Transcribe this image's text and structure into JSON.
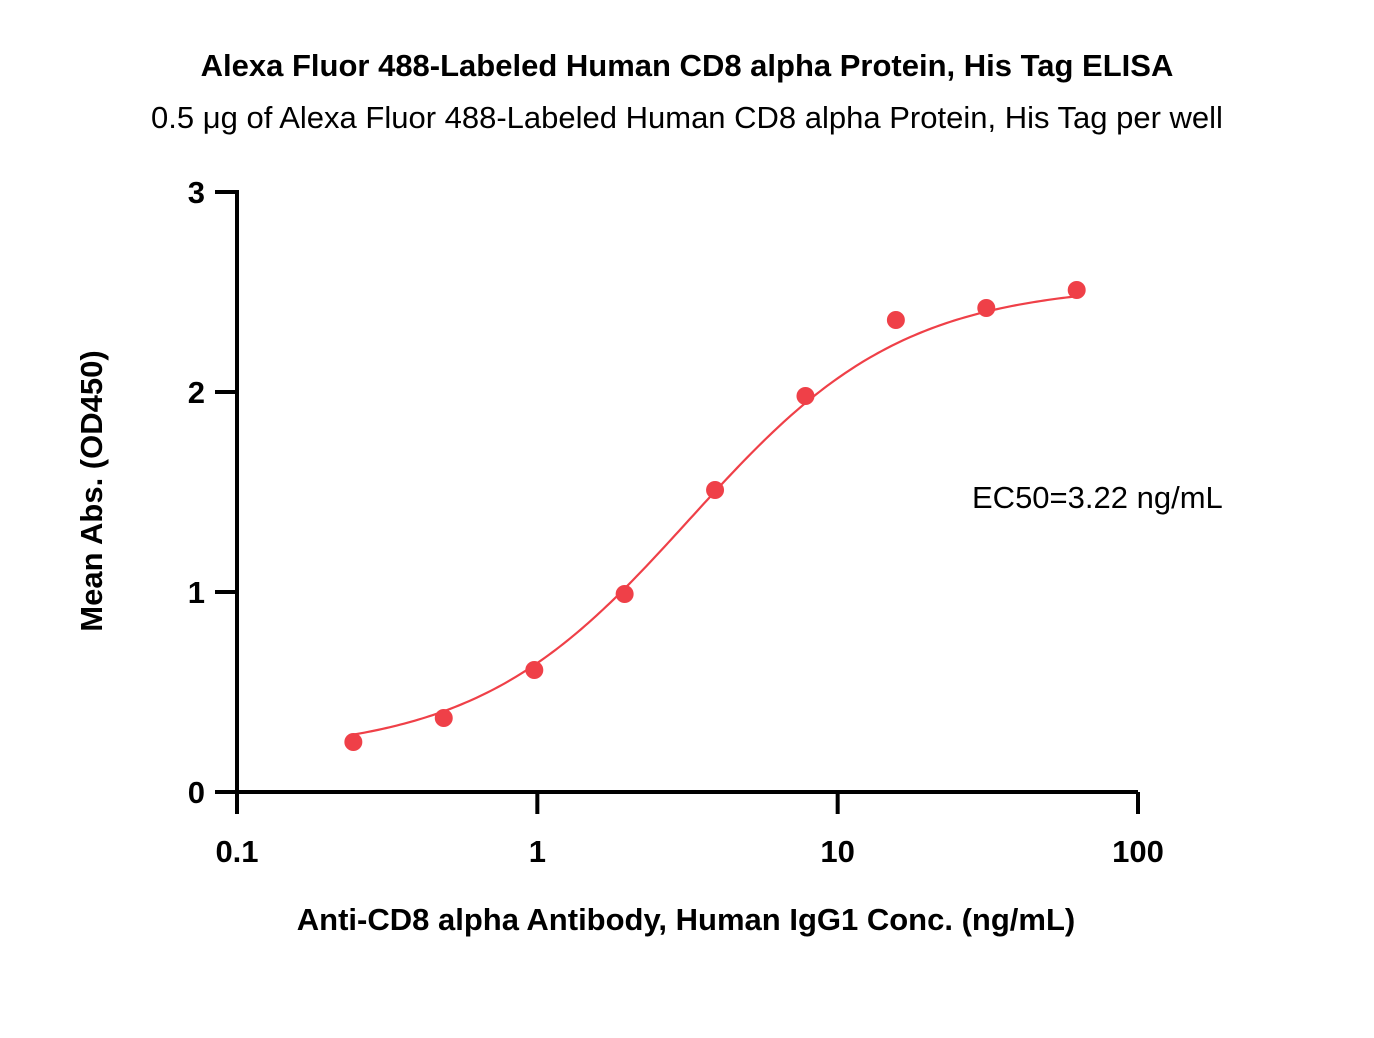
{
  "chart_data": {
    "type": "scatter",
    "title": "Alexa Fluor 488-Labeled Human CD8 alpha Protein, His Tag ELISA",
    "subtitle": "0.5 μg of Alexa Fluor 488-Labeled Human CD8 alpha Protein, His Tag per well",
    "xlabel": "Anti-CD8 alpha Antibody, Human IgG1 Conc. (ng/mL)",
    "ylabel": "Mean Abs. (OD450)",
    "x_scale": "log",
    "xlim": [
      0.1,
      100
    ],
    "ylim": [
      0,
      3
    ],
    "x_ticks": [
      "0.1",
      "1",
      "10",
      "100"
    ],
    "y_ticks": [
      "0",
      "1",
      "2",
      "3"
    ],
    "grid": false,
    "series": [
      {
        "color": "#ef4048",
        "x": [
          0.244,
          0.488,
          0.977,
          1.953,
          3.906,
          7.813,
          15.625,
          31.25,
          62.5
        ],
        "y": [
          0.25,
          0.37,
          0.61,
          0.99,
          1.51,
          1.98,
          2.36,
          2.42,
          2.51
        ]
      }
    ],
    "fit_curve": {
      "model": "4PL",
      "bottom": 0.19,
      "top": 2.54,
      "ec50": 3.22,
      "hill": 1.22,
      "color": "#ef4048"
    },
    "annotations": [
      "EC50=3.22 ng/mL"
    ]
  }
}
